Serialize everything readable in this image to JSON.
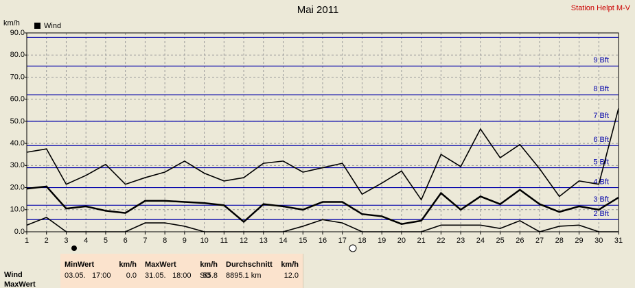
{
  "chart_data": {
    "type": "line",
    "title": "Mai 2011",
    "subtitle": "Station Helpt M-V",
    "y_label": "km/h",
    "x": [
      1,
      2,
      3,
      4,
      5,
      6,
      7,
      8,
      9,
      10,
      11,
      12,
      13,
      14,
      15,
      16,
      17,
      18,
      19,
      20,
      21,
      22,
      23,
      24,
      25,
      26,
      27,
      28,
      29,
      30,
      31
    ],
    "xlim": [
      1,
      31
    ],
    "ylim": [
      0,
      90
    ],
    "yticks": [
      {
        "value": 0,
        "label": "0.0"
      },
      {
        "value": 10,
        "label": "10.0"
      },
      {
        "value": 20,
        "label": "20.0"
      },
      {
        "value": 30,
        "label": "30.0"
      },
      {
        "value": 40,
        "label": "40.0"
      },
      {
        "value": 50,
        "label": "50.0"
      },
      {
        "value": 60,
        "label": "60.0"
      },
      {
        "value": 70,
        "label": "70.0"
      },
      {
        "value": 80,
        "label": "80.0"
      },
      {
        "value": 90,
        "label": "90.0"
      }
    ],
    "grid": true,
    "series": [
      {
        "name": "Wind",
        "color": "#000000",
        "values": [
          19.5,
          20.5,
          10.5,
          11.5,
          9.5,
          8.5,
          14,
          14,
          13.5,
          13,
          12,
          4.5,
          12.5,
          11.5,
          10,
          13.5,
          13.5,
          8,
          7,
          3.5,
          5,
          17.5,
          10,
          16,
          12.5,
          19,
          12.5,
          9,
          11.5,
          10,
          15.5
        ]
      },
      {
        "color": "#000000",
        "values": [
          36,
          37.5,
          21.5,
          25.5,
          30.5,
          21.5,
          24.5,
          27,
          32,
          26.5,
          23,
          24.5,
          31,
          32,
          27,
          29,
          31,
          17,
          22,
          27.5,
          14.5,
          35,
          29.5,
          46.5,
          33.5,
          39.5,
          28.5,
          16,
          23,
          21.5,
          55.8
        ]
      },
      {
        "color": "#000000",
        "values": [
          3,
          6.5,
          0,
          0,
          0,
          0,
          4,
          4,
          2.5,
          0,
          0,
          0,
          0,
          0,
          2.5,
          5.5,
          4,
          0,
          0,
          0,
          0,
          3,
          3,
          3,
          1.5,
          5,
          0,
          2.5,
          3,
          0,
          0
        ]
      }
    ],
    "reference_color": "#0000aa",
    "reference_lines": [
      {
        "value": 5.5,
        "label": "2 Bft"
      },
      {
        "value": 12,
        "label": "3 Bft"
      },
      {
        "value": 20,
        "label": "4 Bft"
      },
      {
        "value": 29,
        "label": "5 Bft"
      },
      {
        "value": 39,
        "label": "6 Bft"
      },
      {
        "value": 50,
        "label": "7 Bft"
      },
      {
        "value": 62,
        "label": "8 Bft"
      },
      {
        "value": 75,
        "label": "9 Bft"
      },
      {
        "value": 88
      }
    ]
  },
  "stats": {
    "row_labels": [
      "Wind",
      "MaxWert"
    ],
    "columns": [
      {
        "title": "MinWert",
        "unit": "km/h",
        "texts": [
          "03.05.",
          "17:00",
          "0.0"
        ]
      },
      {
        "title": "MaxWert",
        "unit": "km/h",
        "texts": [
          "31.05.",
          "18:00",
          "SO",
          "55.8"
        ]
      },
      {
        "title": "Durchschnitt",
        "unit": "km/h",
        "texts": [
          "8895.1 km",
          "12.0"
        ]
      }
    ]
  }
}
